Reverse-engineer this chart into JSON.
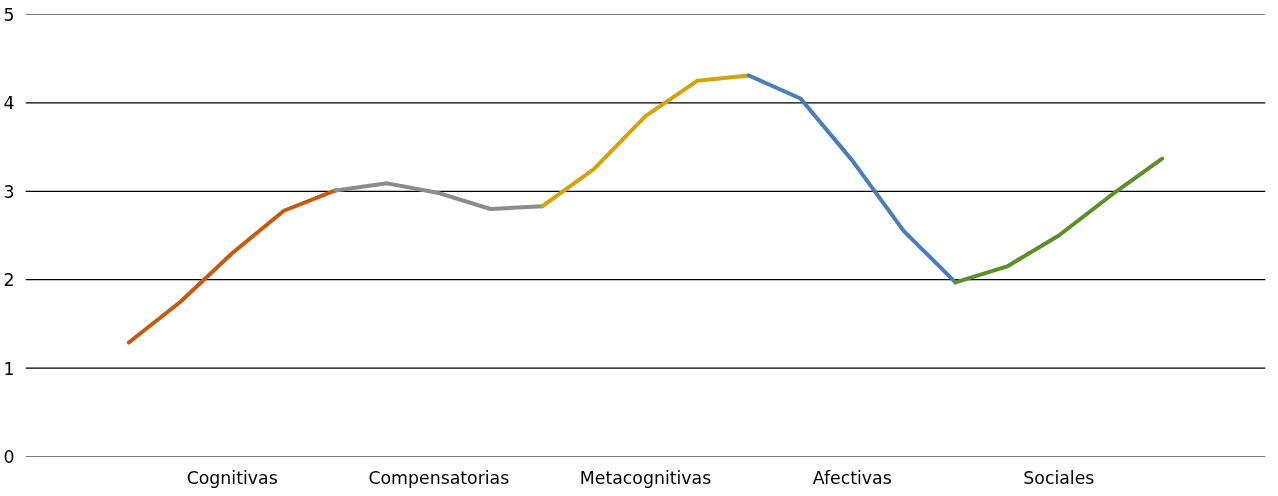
{
  "chart_data": {
    "type": "line",
    "ylim": [
      0,
      5
    ],
    "yticks": [
      0,
      1,
      2,
      3,
      4,
      5
    ],
    "categories": [
      null,
      null,
      "Cognitivas",
      null,
      null,
      null,
      "Compensatorias",
      null,
      null,
      null,
      "Metacognitivas",
      null,
      null,
      null,
      "Afectivas",
      null,
      null,
      null,
      "Sociales",
      null,
      null
    ],
    "grid": "y",
    "line_style": "solid",
    "marker": "none",
    "series": [
      {
        "color": "#c55a11",
        "values": [
          1.29,
          1.75,
          2.3,
          2.78,
          3.01,
          null,
          null,
          null,
          null,
          null,
          null,
          null,
          null,
          null,
          null,
          null,
          null,
          null,
          null,
          null,
          null
        ]
      },
      {
        "color": "#8c8c8c",
        "values": [
          null,
          null,
          null,
          null,
          3.01,
          3.09,
          2.98,
          2.8,
          2.83,
          null,
          null,
          null,
          null,
          null,
          null,
          null,
          null,
          null,
          null,
          null,
          null
        ]
      },
      {
        "color": "#d4a20a",
        "values": [
          null,
          null,
          null,
          null,
          null,
          null,
          null,
          null,
          2.83,
          3.25,
          3.85,
          4.25,
          4.31,
          null,
          null,
          null,
          null,
          null,
          null,
          null,
          null
        ]
      },
      {
        "color": "#4a7ebb",
        "values": [
          null,
          null,
          null,
          null,
          null,
          null,
          null,
          null,
          null,
          null,
          null,
          null,
          4.31,
          4.05,
          3.35,
          2.55,
          1.97,
          null,
          null,
          null,
          null
        ]
      },
      {
        "color": "#5a8f2a",
        "values": [
          null,
          null,
          null,
          null,
          null,
          null,
          null,
          null,
          null,
          null,
          null,
          null,
          null,
          null,
          null,
          null,
          1.97,
          2.15,
          2.5,
          2.95,
          3.37
        ]
      }
    ]
  }
}
